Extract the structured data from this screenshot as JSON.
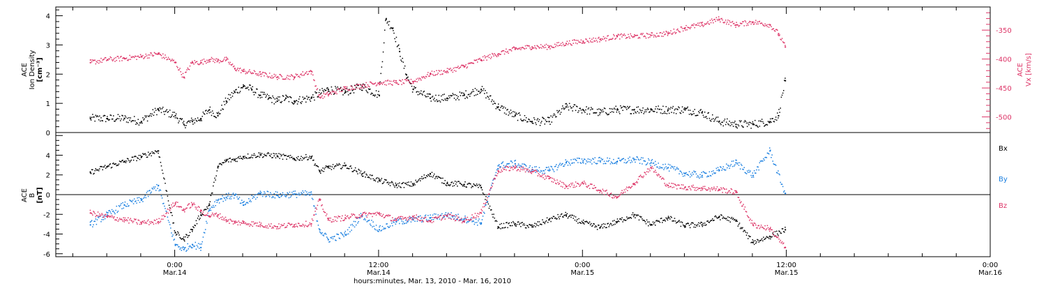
{
  "chart_data": [
    {
      "type": "scatter",
      "panel": "top",
      "y_left_label": [
        "ACE",
        "Ion Density",
        "[cm⁻³]"
      ],
      "y_right_label": [
        "ACE",
        "Vx [km/s]"
      ],
      "y_left_ticks": [
        "0",
        "1",
        "2",
        "3",
        "4"
      ],
      "y_right_ticks": [
        "-350",
        "-400",
        "-450",
        "-500"
      ],
      "ylim_left": [
        0,
        4.3
      ],
      "ylim_right": [
        -527,
        -310
      ],
      "series": [
        {
          "axis": "left",
          "color": "#000000",
          "x": [
            -5,
            -4,
            -3,
            -2,
            -1,
            0,
            0.5,
            1,
            1.5,
            2,
            2.5,
            3,
            3.5,
            4,
            4.5,
            5,
            5.5,
            6,
            6.5,
            7,
            8,
            9,
            10,
            11,
            12,
            12.4,
            12.8,
            13.2,
            13.6,
            14,
            15,
            16,
            17,
            18,
            19,
            20,
            21,
            22,
            23,
            24,
            25,
            26,
            27,
            28,
            29,
            30,
            31,
            32,
            33,
            34,
            35,
            35.5,
            35.9
          ],
          "values": [
            0.5,
            0.5,
            0.5,
            0.4,
            0.8,
            0.6,
            0.3,
            0.4,
            0.5,
            0.8,
            0.6,
            1.1,
            1.4,
            1.6,
            1.5,
            1.3,
            1.2,
            1.1,
            1.2,
            1.1,
            1.2,
            1.5,
            1.4,
            1.6,
            1.3,
            3.9,
            3.6,
            2.8,
            2.0,
            1.5,
            1.2,
            1.2,
            1.3,
            1.5,
            0.9,
            0.6,
            0.4,
            0.4,
            0.9,
            0.8,
            0.7,
            0.8,
            0.8,
            0.8,
            0.8,
            0.8,
            0.7,
            0.4,
            0.3,
            0.3,
            0.4,
            0.6,
            1.8
          ]
        },
        {
          "axis": "right",
          "color": "#dd3366",
          "x": [
            -5,
            -4,
            -3,
            -2,
            -1,
            0,
            0.5,
            1,
            1.5,
            2,
            2.5,
            3,
            3.5,
            4,
            5,
            6,
            7,
            8,
            8.5,
            9,
            10,
            11,
            12,
            13,
            14,
            15,
            16,
            17,
            18,
            19,
            20,
            21,
            22,
            23,
            24,
            25,
            26,
            27,
            28,
            29,
            30,
            31,
            32,
            33,
            34,
            35,
            35.5,
            35.9
          ],
          "values": [
            -405,
            -400,
            -398,
            -395,
            -390,
            -405,
            -430,
            -405,
            -405,
            -400,
            -402,
            -400,
            -415,
            -420,
            -425,
            -430,
            -430,
            -420,
            -465,
            -460,
            -450,
            -445,
            -440,
            -440,
            -438,
            -425,
            -420,
            -412,
            -400,
            -390,
            -382,
            -378,
            -378,
            -372,
            -368,
            -365,
            -360,
            -360,
            -358,
            -355,
            -345,
            -340,
            -330,
            -340,
            -335,
            -340,
            -355,
            -378
          ]
        }
      ]
    },
    {
      "type": "scatter",
      "panel": "bottom",
      "y_left_label": [
        "ACE",
        "B",
        "[nT]"
      ],
      "y_left_ticks": [
        "-6",
        "-4",
        "-2",
        "0",
        "2",
        "4"
      ],
      "ylim": [
        -6.3,
        6.3
      ],
      "legend": [
        "Bx",
        "By",
        "Bz"
      ],
      "series": [
        {
          "name": "Bx",
          "color": "#000000",
          "x": [
            -5,
            -4,
            -3,
            -2,
            -1,
            0,
            0.5,
            1,
            1.5,
            2,
            2.5,
            3,
            3.5,
            4,
            5,
            6,
            7,
            8,
            8.5,
            9,
            10,
            11,
            12,
            13,
            14,
            15,
            16,
            17,
            18,
            19,
            20,
            21,
            22,
            23,
            24,
            25,
            26,
            27,
            28,
            29,
            30,
            31,
            32,
            33,
            34,
            35,
            35.9
          ],
          "values": [
            2.3,
            2.9,
            3.4,
            3.9,
            4.5,
            -3.8,
            -4.5,
            -3.5,
            -2.0,
            -1.0,
            2.8,
            3.5,
            3.6,
            3.9,
            4.1,
            4.0,
            3.7,
            3.9,
            2.4,
            2.8,
            3.0,
            2.2,
            1.5,
            1.0,
            1.1,
            2.2,
            1.2,
            1.1,
            0.8,
            -3.2,
            -2.9,
            -3.2,
            -2.5,
            -2.0,
            -2.8,
            -3.3,
            -2.7,
            -2.0,
            -3.0,
            -2.3,
            -3.1,
            -3.0,
            -2.2,
            -2.6,
            -4.8,
            -4.2,
            -3.5
          ]
        },
        {
          "name": "By",
          "color": "#1a7fe0",
          "x": [
            -5,
            -4,
            -3,
            -2,
            -1,
            0,
            0.5,
            1,
            1.5,
            2,
            2.5,
            3,
            3.5,
            4,
            5,
            6,
            7,
            8,
            8.5,
            9,
            10,
            11,
            12,
            13,
            14,
            15,
            16,
            17,
            18,
            19,
            20,
            21,
            22,
            23,
            24,
            25,
            26,
            27,
            28,
            29,
            30,
            31,
            32,
            33,
            34,
            35,
            35.9
          ],
          "values": [
            -3.0,
            -2.0,
            -1.0,
            -0.5,
            1.0,
            -5.0,
            -5.5,
            -5.0,
            -5.3,
            -1.5,
            -0.5,
            -0.2,
            0,
            -1.0,
            0.2,
            0,
            0.1,
            0.1,
            -3.5,
            -4.5,
            -4.0,
            -2.0,
            -3.5,
            -2.7,
            -2.5,
            -2.3,
            -2.0,
            -2.4,
            -2.8,
            3.0,
            3.2,
            2.6,
            2.5,
            3.3,
            3.5,
            3.5,
            3.4,
            3.6,
            3.3,
            2.8,
            2.2,
            2.0,
            2.5,
            3.3,
            2.0,
            4.5,
            0.2
          ]
        },
        {
          "name": "Bz",
          "color": "#dd3366",
          "x": [
            -5,
            -4,
            -3,
            -2,
            -1,
            0,
            0.5,
            1,
            1.5,
            2,
            2.5,
            3,
            3.5,
            4,
            5,
            6,
            7,
            8,
            8.5,
            9,
            10,
            11,
            12,
            13,
            14,
            15,
            16,
            17,
            18,
            19,
            20,
            21,
            22,
            23,
            24,
            25,
            26,
            27,
            28,
            29,
            30,
            31,
            32,
            33,
            34,
            35,
            35.9
          ],
          "values": [
            -1.8,
            -2.2,
            -2.5,
            -2.8,
            -2.7,
            -0.8,
            -1.5,
            -0.9,
            -1.6,
            -2.1,
            -2.0,
            -2.5,
            -2.8,
            -2.8,
            -3.0,
            -3.2,
            -3.0,
            -2.9,
            -0.5,
            -2.5,
            -2.3,
            -2.0,
            -1.9,
            -2.5,
            -2.2,
            -2.6,
            -2.1,
            -2.6,
            -1.8,
            2.5,
            2.8,
            2.4,
            1.7,
            0.9,
            1.2,
            0.5,
            -0.2,
            1.2,
            2.8,
            1.0,
            0.8,
            0.7,
            0.6,
            0.3,
            -3.0,
            -3.4,
            -5.3
          ]
        }
      ]
    }
  ],
  "x_axis": {
    "xlim_hours": [
      -7,
      48
    ],
    "tick_positions_hours": [
      0,
      12,
      24,
      36,
      48
    ],
    "tick_labels_top": [
      "0:00",
      "12:00",
      "0:00",
      "12:00",
      "0:00"
    ],
    "tick_labels_bottom": [
      "Mar.14",
      "Mar.14",
      "Mar.15",
      "Mar.15",
      "Mar.16"
    ],
    "title": "hours:minutes, Mar. 13, 2010 - Mar. 16, 2010"
  }
}
